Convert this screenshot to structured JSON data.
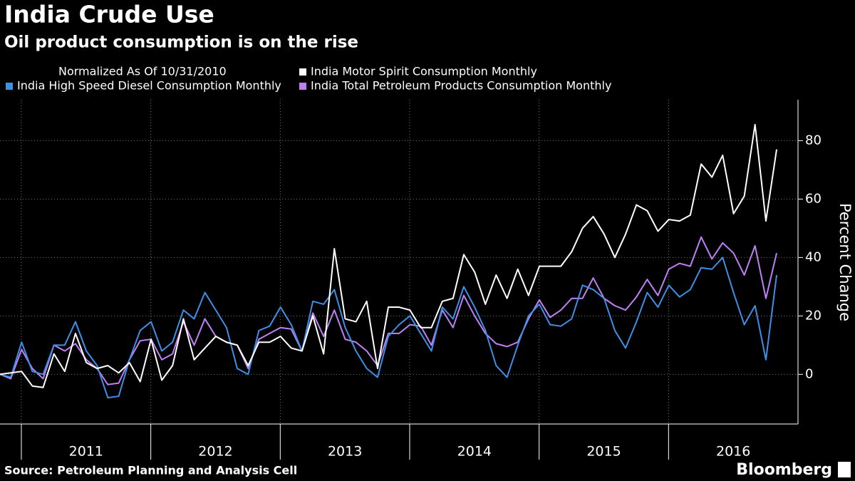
{
  "chart_data": {
    "type": "line",
    "title": "India Crude Use",
    "subtitle": "Oil product consumption is on the rise",
    "legend_title": "Normalized As Of 10/31/2010",
    "y_label": "Percent Change",
    "source": "Source: Petroleum Planning and Analysis Cell",
    "logo": "Bloomberg",
    "x": [
      2010.835,
      2010.918,
      2011.002,
      2011.085,
      2011.168,
      2011.252,
      2011.335,
      2011.418,
      2011.502,
      2011.585,
      2011.668,
      2011.752,
      2011.835,
      2011.918,
      2012.002,
      2012.085,
      2012.168,
      2012.252,
      2012.335,
      2012.418,
      2012.502,
      2012.585,
      2012.668,
      2012.752,
      2012.835,
      2012.918,
      2013.002,
      2013.085,
      2013.168,
      2013.252,
      2013.335,
      2013.418,
      2013.502,
      2013.585,
      2013.668,
      2013.752,
      2013.835,
      2013.918,
      2014.002,
      2014.085,
      2014.168,
      2014.252,
      2014.335,
      2014.418,
      2014.502,
      2014.585,
      2014.668,
      2014.752,
      2014.835,
      2014.918,
      2015.002,
      2015.085,
      2015.168,
      2015.252,
      2015.335,
      2015.418,
      2015.502,
      2015.585,
      2015.668,
      2015.752,
      2015.835,
      2015.918,
      2016.002,
      2016.085,
      2016.168,
      2016.252,
      2016.335,
      2016.418,
      2016.502,
      2016.585,
      2016.668,
      2016.752,
      2016.835
    ],
    "series": [
      {
        "name": "India Motor Spirit Consumption Monthly",
        "color": "#ffffff",
        "values": [
          0,
          0.5,
          1,
          -4,
          -4.5,
          7,
          1,
          14,
          4,
          2,
          3,
          0.5,
          4,
          -2.5,
          12,
          -2,
          3,
          19,
          5,
          9,
          13,
          11,
          10,
          3,
          11,
          11,
          13,
          9,
          8,
          20,
          7,
          43,
          19,
          18,
          25,
          2,
          23,
          23,
          22,
          16,
          16,
          25,
          26,
          41,
          35,
          24,
          34,
          26,
          36,
          27,
          37,
          37,
          37,
          42,
          50,
          54,
          48,
          40,
          48,
          58,
          56,
          49,
          53,
          52.5,
          54.5,
          72,
          67.5,
          75,
          55,
          61,
          85.5,
          52.5,
          77
        ]
      },
      {
        "name": "India High Speed Diesel Consumption Monthly",
        "color": "#3f8fe6",
        "values": [
          0,
          -1,
          11,
          1,
          0,
          10,
          10,
          18,
          8,
          3,
          -8,
          -7.5,
          5,
          15,
          18,
          8,
          11,
          22,
          19,
          28,
          22,
          16,
          2,
          0,
          15,
          16.5,
          23,
          17,
          8,
          25,
          24,
          29,
          16,
          8,
          2,
          -1,
          13,
          17,
          20,
          14,
          8,
          23,
          19,
          30,
          23,
          15,
          3,
          -1,
          10,
          20,
          24,
          17,
          16.5,
          19,
          30.5,
          29,
          26,
          15,
          9,
          18,
          28,
          23,
          30.5,
          26.5,
          29,
          36.5,
          36,
          40,
          28,
          17,
          23.5,
          5,
          34
        ]
      },
      {
        "name": "India Total Petroleum Products Consumption Monthly",
        "color": "#bf80f5",
        "values": [
          0,
          -1.5,
          8.5,
          2,
          -1.5,
          10,
          8,
          10.5,
          5,
          2,
          -3.5,
          -3,
          5,
          11.5,
          12,
          5,
          7,
          18,
          10,
          19,
          13,
          11,
          10,
          2,
          12,
          14,
          16,
          15.5,
          8,
          21,
          13,
          22,
          12,
          11,
          8,
          3,
          14,
          14,
          17,
          16.5,
          10,
          22,
          16,
          27,
          20,
          14,
          10.5,
          9.5,
          11,
          19,
          25.5,
          19.5,
          22,
          26,
          26,
          33,
          26,
          23.5,
          22,
          26.5,
          32.5,
          27,
          36,
          38,
          37,
          47,
          39.5,
          45,
          41.5,
          34,
          44,
          26,
          41.5
        ]
      }
    ],
    "xlim": [
      2010.835,
      2017.0
    ],
    "xticks": [
      2011,
      2012,
      2013,
      2014,
      2015,
      2016
    ],
    "ylim": [
      -17,
      94
    ],
    "yticks": [
      0,
      20,
      40,
      60,
      80
    ],
    "grid": true
  }
}
